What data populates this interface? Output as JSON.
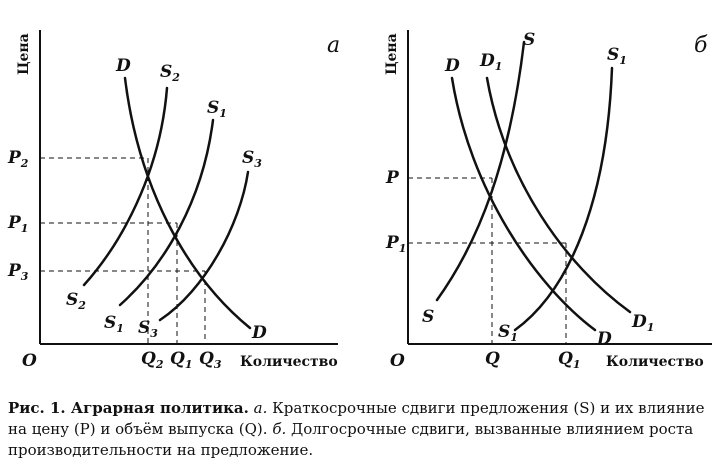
{
  "figure": {
    "panel_a": {
      "letter": "а",
      "y_axis_title": "Цена",
      "x_axis_title": "Количество",
      "origin": "O",
      "curves": {
        "D": {
          "base": "D",
          "sub": ""
        },
        "S2": {
          "base": "S",
          "sub": "2"
        },
        "S1": {
          "base": "S",
          "sub": "1"
        },
        "S3": {
          "base": "S",
          "sub": "3"
        }
      },
      "price_ticks": [
        {
          "base": "P",
          "sub": "2"
        },
        {
          "base": "P",
          "sub": "1"
        },
        {
          "base": "P",
          "sub": "3"
        }
      ],
      "quantity_ticks": [
        {
          "base": "Q",
          "sub": "2"
        },
        {
          "base": "Q",
          "sub": "1"
        },
        {
          "base": "Q",
          "sub": "3"
        }
      ]
    },
    "panel_b": {
      "letter": "б",
      "y_axis_title": "Цена",
      "x_axis_title": "Количество",
      "origin": "O",
      "curves": {
        "D": {
          "base": "D",
          "sub": ""
        },
        "D1": {
          "base": "D",
          "sub": "1"
        },
        "S": {
          "base": "S",
          "sub": ""
        },
        "S1": {
          "base": "S",
          "sub": "1"
        }
      },
      "price_ticks": [
        {
          "base": "P",
          "sub": ""
        },
        {
          "base": "P",
          "sub": "1"
        }
      ],
      "quantity_ticks": [
        {
          "base": "Q",
          "sub": ""
        },
        {
          "base": "Q",
          "sub": "1"
        }
      ]
    }
  },
  "caption": {
    "prefix": "Рис. 1. Аграрная политика.",
    "part_a_letter": "а.",
    "part_a_text": "Краткосрочные сдвиги предложения (S) и их влияние на цену (P) и объём выпуска (Q).",
    "part_b_letter": "б.",
    "part_b_text": "Долгосрочные сдвиги, вызванные влиянием роста производительности на предложение."
  }
}
